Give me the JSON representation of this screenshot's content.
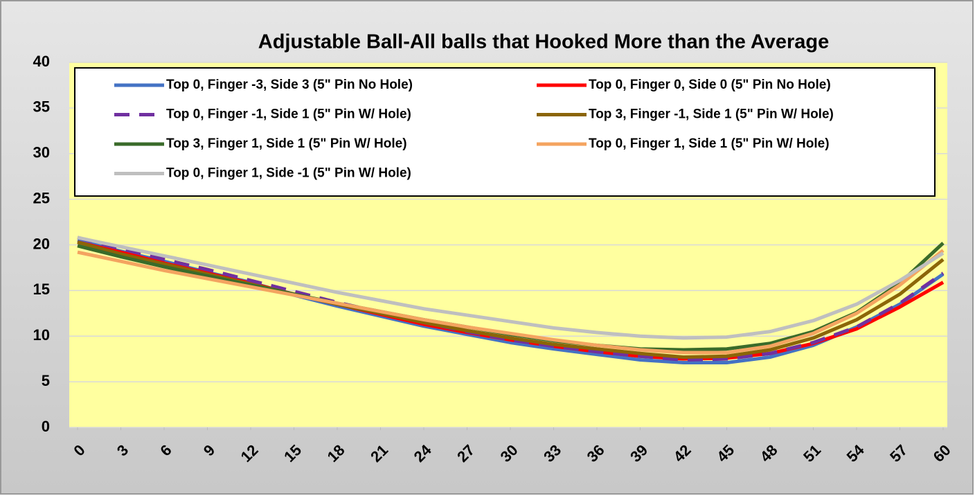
{
  "chart_data": {
    "type": "line",
    "title": "Adjustable Ball-All balls that Hooked More than the Average",
    "x": [
      0,
      3,
      6,
      9,
      12,
      15,
      18,
      21,
      24,
      27,
      30,
      33,
      36,
      39,
      42,
      45,
      48,
      51,
      54,
      57,
      60
    ],
    "xlim": [
      0,
      60
    ],
    "xticks": [
      0,
      3,
      6,
      9,
      12,
      15,
      18,
      21,
      24,
      27,
      30,
      33,
      36,
      39,
      42,
      45,
      48,
      51,
      54,
      57,
      60
    ],
    "ylim": [
      0,
      40
    ],
    "yticks": [
      0,
      5,
      10,
      15,
      20,
      25,
      30,
      35,
      40
    ],
    "grid": true,
    "series": [
      {
        "name": "Top 0, Finger -3, Side 3  (5\" Pin No Hole)",
        "color": "#4472c4",
        "values": [
          20.5,
          19.3,
          18.2,
          17,
          15.9,
          14.5,
          13.3,
          12.2,
          11.1,
          10.2,
          9.3,
          8.6,
          8,
          7.4,
          7.1,
          7.1,
          7.7,
          9,
          11,
          13.5,
          16.8
        ]
      },
      {
        "name": "Top 0, Finger 0, Side 0  (5\" Pin No Hole)",
        "color": "#ff0000",
        "values": [
          20.3,
          19.2,
          18,
          16.9,
          15.8,
          14.6,
          13.5,
          12.4,
          11.3,
          10.4,
          9.6,
          8.9,
          8.3,
          7.8,
          7.5,
          7.6,
          8.1,
          9.2,
          10.8,
          13.2,
          15.9
        ]
      },
      {
        "name": "Top 0, Finger -1, Side 1  (5\" Pin W/ Hole)",
        "color": "#7030a0",
        "dashed": true,
        "values": [
          20.8,
          19.6,
          18.4,
          17.3,
          16.1,
          14.9,
          13.7,
          12.6,
          11.5,
          10.5,
          9.6,
          8.9,
          8.3,
          7.8,
          7.4,
          7.5,
          8.1,
          9.3,
          11,
          13.6,
          16.9
        ]
      },
      {
        "name": "Top 3, Finger -1, Side 1  (5\" Pin W/ Hole)",
        "color": "#8b6508",
        "values": [
          20.3,
          19,
          17.9,
          16.8,
          15.7,
          14.6,
          13.5,
          12.5,
          11.5,
          10.6,
          9.8,
          9.1,
          8.6,
          8.1,
          7.7,
          7.8,
          8.5,
          9.8,
          11.8,
          14.6,
          18.4
        ]
      },
      {
        "name": "Top 3, Finger 1, Side 1  (5\" Pin W/ Hole)",
        "color": "#3a6b2a",
        "values": [
          19.9,
          18.7,
          17.6,
          16.6,
          15.6,
          14.6,
          13.6,
          12.7,
          11.8,
          11,
          10.2,
          9.5,
          9,
          8.6,
          8.5,
          8.6,
          9.2,
          10.5,
          12.6,
          15.8,
          20.2
        ]
      },
      {
        "name": "Top 0, Finger 1, Side 1  (5\" Pin W/ Hole)",
        "color": "#f4a460",
        "values": [
          19.2,
          18.2,
          17.2,
          16.3,
          15.4,
          14.5,
          13.6,
          12.7,
          11.8,
          11,
          10.3,
          9.6,
          9,
          8.5,
          8.2,
          8.2,
          8.9,
          10.3,
          12.5,
          15.6,
          19.4
        ]
      },
      {
        "name": "Top 0, Finger 1, Side -1  (5\" Pin W/ Hole)",
        "color": "#bfbfbf",
        "values": [
          20.8,
          19.8,
          18.8,
          17.8,
          16.8,
          15.8,
          14.8,
          13.9,
          13,
          12.3,
          11.6,
          10.9,
          10.4,
          10,
          9.8,
          9.9,
          10.5,
          11.7,
          13.5,
          16.1,
          19.1
        ]
      }
    ]
  }
}
